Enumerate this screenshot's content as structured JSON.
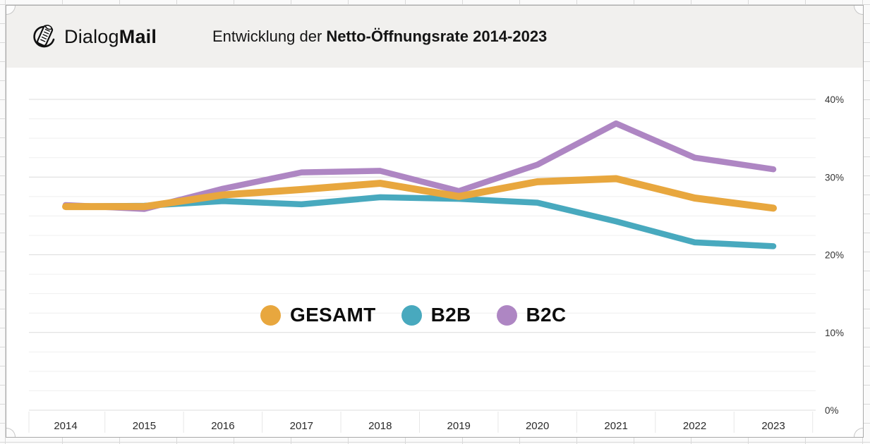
{
  "header": {
    "logo_regular": "Dialog",
    "logo_bold": "Mail",
    "title_prefix": "Entwicklung der",
    "title_bold": "Netto-Öffnungsrate 2014-2023"
  },
  "chart_data": {
    "type": "line",
    "title": "Entwicklung der Netto-Öffnungsrate 2014-2023",
    "x": [
      2014,
      2015,
      2016,
      2017,
      2018,
      2019,
      2020,
      2021,
      2022,
      2023
    ],
    "x_labels": [
      "2014",
      "2015",
      "2016",
      "2017",
      "2018",
      "2019",
      "2020",
      "2021",
      "2022",
      "2023"
    ],
    "series": [
      {
        "name": "GESAMT",
        "color": "#E8A73E",
        "stroke_width": 10,
        "values": [
          26.2,
          26.2,
          27.7,
          28.4,
          29.2,
          27.5,
          29.4,
          29.8,
          27.3,
          26.0
        ]
      },
      {
        "name": "B2B",
        "color": "#48A9BE",
        "stroke_width": 8.5,
        "values": [
          26.2,
          26.3,
          26.9,
          26.5,
          27.4,
          27.2,
          26.7,
          24.3,
          21.6,
          21.1
        ]
      },
      {
        "name": "B2C",
        "color": "#AE86C3",
        "stroke_width": 8.5,
        "values": [
          26.4,
          25.9,
          28.5,
          30.6,
          30.8,
          28.2,
          31.6,
          36.9,
          32.5,
          31.0
        ]
      }
    ],
    "draw_order": [
      2,
      1,
      0
    ],
    "y_axis": {
      "position": "right",
      "ticks": [
        0,
        10,
        20,
        30,
        40
      ],
      "tick_labels": [
        "0%",
        "10%",
        "20%",
        "30%",
        "40%"
      ],
      "max": 40,
      "minor_step": 2.5,
      "unit": "%"
    },
    "ylim": [
      0,
      42
    ],
    "grid": "horizontal, minor every 2.5%, major every 10%",
    "legend_position": "center-middle"
  }
}
